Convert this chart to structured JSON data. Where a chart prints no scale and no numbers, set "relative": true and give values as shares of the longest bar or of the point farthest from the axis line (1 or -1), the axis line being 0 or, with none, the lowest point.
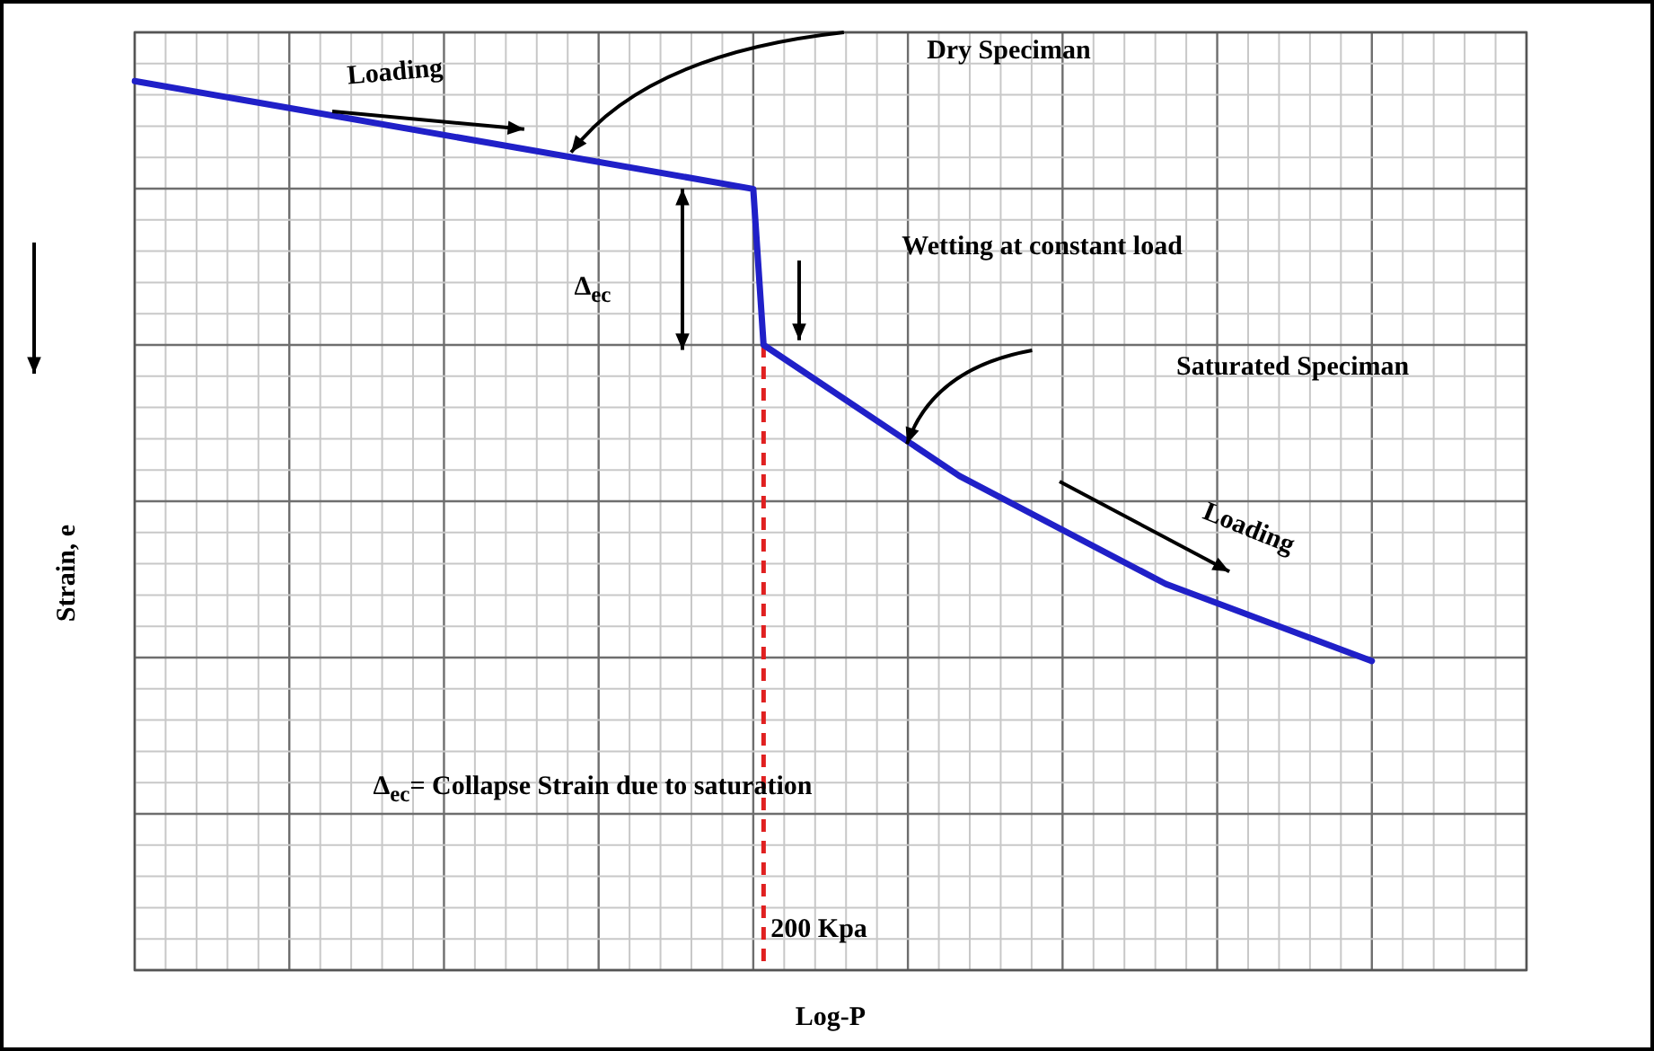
{
  "chart_data": {
    "type": "line",
    "relative": true,
    "ylabel": "Strain, e",
    "categories": [
      null,
      null,
      null,
      null,
      null,
      null,
      null,
      null,
      null,
      null,
      null,
      null,
      null,
      null,
      null,
      null,
      null,
      null,
      null,
      null,
      null,
      null,
      null,
      null,
      null,
      null,
      null,
      null,
      null,
      null,
      null,
      null,
      null,
      null,
      null,
      null,
      null,
      null,
      null,
      null,
      null,
      null,
      null,
      null,
      null,
      null,
      null,
      null,
      null,
      null,
      null,
      null,
      null,
      null,
      null,
      null,
      null,
      null,
      null,
      null,
      null,
      null,
      null,
      null,
      null,
      null,
      null,
      null,
      null,
      null,
      null,
      null,
      null,
      null,
      null,
      null,
      null,
      null,
      null,
      null,
      null,
      null,
      null,
      null,
      null,
      null,
      null,
      null,
      null,
      null,
      null,
      null,
      null,
      null,
      null,
      null,
      null,
      null,
      null,
      null,
      null,
      null,
      null,
      null,
      null,
      null,
      null,
      null,
      null,
      null,
      null,
      null,
      null,
      null,
      null,
      null,
      null,
      null,
      null,
      null,
      null,
      null,
      null,
      null,
      null,
      null,
      null,
      null,
      null,
      null,
      null,
      null,
      null,
      null,
      null,
      null
    ],
    "series": [
      {
        "color": "#2020c8",
        "values": [
          1,
          null,
          null,
          null,
          null,
          null,
          null,
          null,
          null,
          null,
          null,
          null,
          null,
          null,
          null,
          null,
          null,
          null,
          null,
          null,
          null,
          null,
          null,
          null,
          null,
          null,
          null,
          null,
          null,
          null,
          null,
          null,
          null,
          null,
          null,
          null,
          null,
          null,
          null,
          null,
          null,
          null,
          null,
          null,
          null,
          null,
          null,
          null,
          null,
          null,
          null,
          null,
          null,
          null,
          null,
          null,
          null,
          null,
          null,
          null,
          0.814,
          0.545,
          null,
          null,
          null,
          null,
          null,
          null,
          null,
          null,
          null,
          null,
          null,
          null,
          null,
          null,
          null,
          null,
          null,
          null,
          0.319,
          null,
          null,
          null,
          null,
          null,
          null,
          null,
          null,
          null,
          null,
          null,
          null,
          null,
          null,
          null,
          null,
          null,
          null,
          null,
          0.133,
          null,
          null,
          null,
          null,
          null,
          null,
          null,
          null,
          null,
          null,
          null,
          null,
          null,
          null,
          null,
          null,
          null,
          null,
          null,
          0,
          null,
          null,
          null,
          null,
          null,
          null,
          null,
          null,
          null,
          null,
          null,
          null,
          null,
          null,
          null
        ]
      }
    ],
    "marker": "none",
    "line_style": "solid",
    "grid": true,
    "legend": false,
    "tick_labels": false,
    "ref_lines": [
      {
        "axis": "x",
        "label": "200 Kpa",
        "color": "#e02020",
        "line_style": "dashed"
      }
    ],
    "annotations": [
      "Loading",
      "Dry  Speciman",
      "Wetting at constant load",
      "Saturated Speciman",
      "Loading",
      "Δ$_{ec}$",
      "Δ$_{ec}$= Collapse Strain due to saturation",
      "Log-P"
    ]
  }
}
